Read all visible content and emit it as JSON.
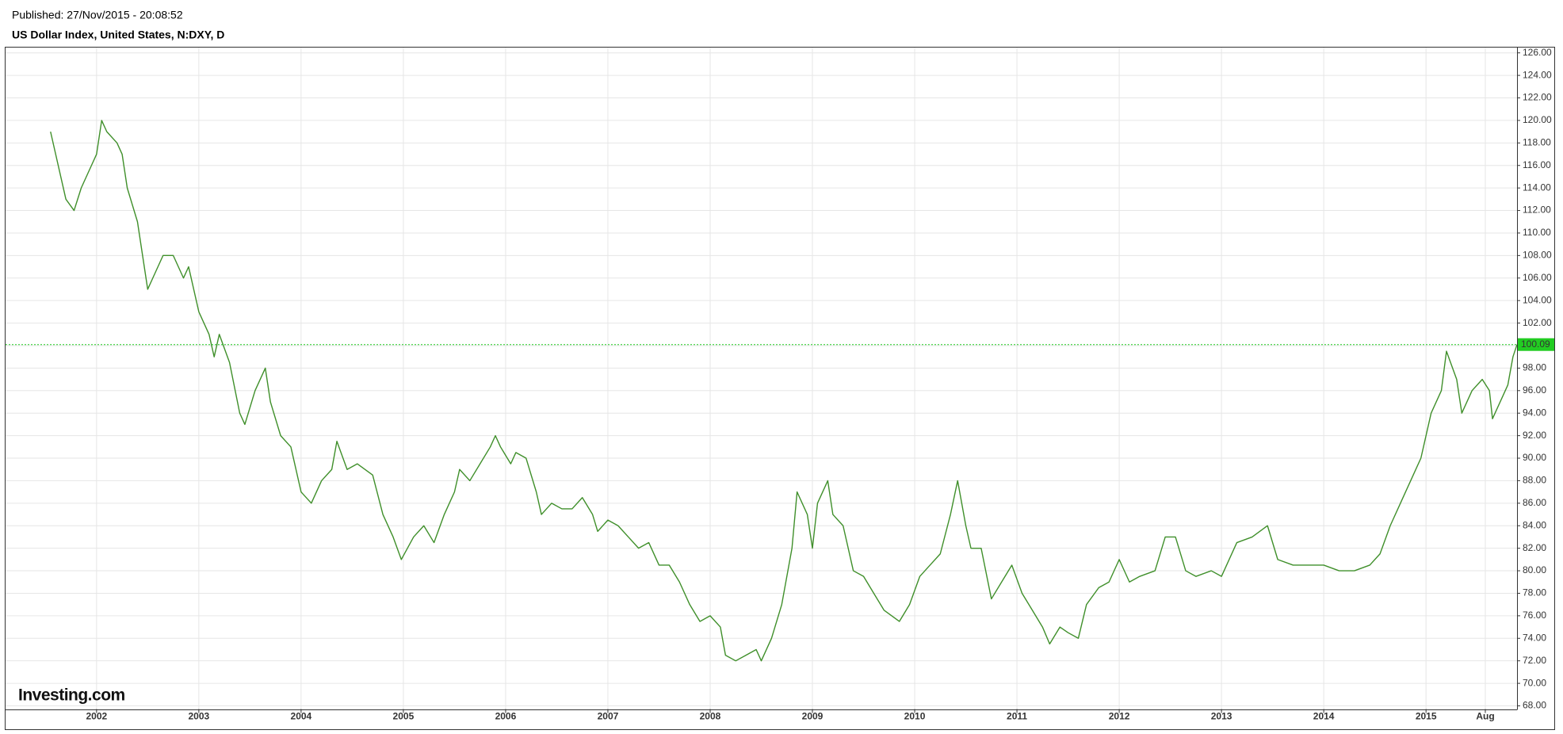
{
  "chart_data": {
    "type": "line",
    "published": "Published: 27/Nov/2015 - 20:08:52",
    "title": "US Dollar Index, United States, N:DXY, D",
    "brand": "Investing.com",
    "xlim": [
      2001.11,
      2015.89
    ],
    "xticks": [
      2002,
      2003,
      2004,
      2005,
      2006,
      2007,
      2008,
      2009,
      2010,
      2011,
      2012,
      2013,
      2014,
      2015,
      {
        "value": 2015.58,
        "label": "Aug"
      }
    ],
    "ylim": [
      68,
      126
    ],
    "yticks": [
      {
        "value": 68,
        "label": "68.00"
      },
      {
        "value": 70,
        "label": "70.00"
      },
      {
        "value": 72,
        "label": "72.00"
      },
      {
        "value": 74,
        "label": "74.00"
      },
      {
        "value": 76,
        "label": "76.00"
      },
      {
        "value": 78,
        "label": "78.00"
      },
      {
        "value": 80,
        "label": "80.00"
      },
      {
        "value": 82,
        "label": "82.00"
      },
      {
        "value": 84,
        "label": "84.00"
      },
      {
        "value": 86,
        "label": "86.00"
      },
      {
        "value": 88,
        "label": "88.00"
      },
      {
        "value": 90,
        "label": "90.00"
      },
      {
        "value": 92,
        "label": "92.00"
      },
      {
        "value": 94,
        "label": "94.00"
      },
      {
        "value": 96,
        "label": "96.00"
      },
      {
        "value": 98,
        "label": "98.00"
      },
      {
        "value": 100,
        "label": "100.00"
      },
      {
        "value": 102,
        "label": "102.00"
      },
      {
        "value": 104,
        "label": "104.00"
      },
      {
        "value": 106,
        "label": "106.00"
      },
      {
        "value": 108,
        "label": "108.00"
      },
      {
        "value": 110,
        "label": "110.00"
      },
      {
        "value": 112,
        "label": "112.00"
      },
      {
        "value": 114,
        "label": "114.00"
      },
      {
        "value": 116,
        "label": "116.00"
      },
      {
        "value": 118,
        "label": "118.00"
      },
      {
        "value": 120,
        "label": "120.00"
      },
      {
        "value": 122,
        "label": "122.00"
      },
      {
        "value": 124,
        "label": "124.00"
      },
      {
        "value": 126,
        "label": "126.00"
      }
    ],
    "grid": true,
    "last_value": 100.09,
    "last_color": "#22cc22",
    "series": [
      {
        "color": "#3f8f2a",
        "x": [
          2001.55,
          2001.6,
          2001.7,
          2001.78,
          2001.85,
          2001.95,
          2002.0,
          2002.05,
          2002.1,
          2002.2,
          2002.25,
          2002.3,
          2002.4,
          2002.45,
          2002.5,
          2002.55,
          2002.65,
          2002.75,
          2002.85,
          2002.9,
          2003.0,
          2003.1,
          2003.15,
          2003.2,
          2003.3,
          2003.4,
          2003.45,
          2003.55,
          2003.65,
          2003.7,
          2003.8,
          2003.9,
          2004.0,
          2004.1,
          2004.2,
          2004.3,
          2004.35,
          2004.45,
          2004.55,
          2004.7,
          2004.8,
          2004.9,
          2004.98,
          2005.1,
          2005.2,
          2005.3,
          2005.4,
          2005.5,
          2005.55,
          2005.65,
          2005.75,
          2005.85,
          2005.9,
          2005.95,
          2006.05,
          2006.1,
          2006.2,
          2006.3,
          2006.35,
          2006.45,
          2006.55,
          2006.65,
          2006.75,
          2006.85,
          2006.9,
          2007.0,
          2007.1,
          2007.2,
          2007.3,
          2007.4,
          2007.5,
          2007.6,
          2007.7,
          2007.8,
          2007.9,
          2008.0,
          2008.1,
          2008.15,
          2008.25,
          2008.35,
          2008.45,
          2008.5,
          2008.6,
          2008.7,
          2008.8,
          2008.85,
          2008.95,
          2009.0,
          2009.05,
          2009.15,
          2009.2,
          2009.3,
          2009.4,
          2009.5,
          2009.6,
          2009.7,
          2009.85,
          2009.95,
          2010.05,
          2010.15,
          2010.25,
          2010.35,
          2010.42,
          2010.5,
          2010.55,
          2010.65,
          2010.75,
          2010.85,
          2010.95,
          2011.05,
          2011.15,
          2011.25,
          2011.32,
          2011.42,
          2011.5,
          2011.6,
          2011.68,
          2011.8,
          2011.9,
          2012.0,
          2012.1,
          2012.2,
          2012.35,
          2012.45,
          2012.55,
          2012.65,
          2012.75,
          2012.9,
          2013.0,
          2013.15,
          2013.3,
          2013.45,
          2013.55,
          2013.7,
          2013.85,
          2014.0,
          2014.15,
          2014.3,
          2014.45,
          2014.55,
          2014.65,
          2014.75,
          2014.85,
          2014.95,
          2015.05,
          2015.15,
          2015.2,
          2015.3,
          2015.35,
          2015.45,
          2015.55,
          2015.62,
          2015.65,
          2015.75,
          2015.8,
          2015.85,
          2015.89
        ],
        "values": [
          119,
          117,
          113,
          112,
          114,
          116,
          117,
          120,
          119,
          118,
          117,
          114,
          111,
          108,
          105,
          106,
          108,
          108,
          106,
          107,
          103,
          101,
          99,
          101,
          98.5,
          94,
          93,
          96,
          98,
          95,
          92,
          91,
          87,
          86,
          88,
          89,
          91.5,
          89,
          89.5,
          88.5,
          85,
          83,
          81,
          83,
          84,
          82.5,
          85,
          87,
          89,
          88,
          89.5,
          91,
          92,
          91,
          89.5,
          90.5,
          90,
          87,
          85,
          86,
          85.5,
          85.5,
          86.5,
          85,
          83.5,
          84.5,
          84,
          83,
          82,
          82.5,
          80.5,
          80.5,
          79,
          77,
          75.5,
          76,
          75,
          72.5,
          72,
          72.5,
          73,
          72,
          74,
          77,
          82,
          87,
          85,
          82,
          86,
          88,
          85,
          84,
          80,
          79.5,
          78,
          76.5,
          75.5,
          77,
          79.5,
          80.5,
          81.5,
          85,
          88,
          84,
          82,
          82,
          77.5,
          79,
          80.5,
          78,
          76.5,
          75,
          73.5,
          75,
          74.5,
          74,
          77,
          78.5,
          79,
          81,
          79,
          79.5,
          80,
          83,
          83,
          80,
          79.5,
          80,
          79.5,
          82.5,
          83,
          84,
          81,
          80.5,
          80.5,
          80.5,
          80,
          80,
          80.5,
          81.5,
          84,
          86,
          88,
          90,
          94,
          96,
          99.5,
          97,
          94,
          96,
          97,
          96,
          93.5,
          95.5,
          96.5,
          99,
          100.09
        ]
      }
    ]
  }
}
